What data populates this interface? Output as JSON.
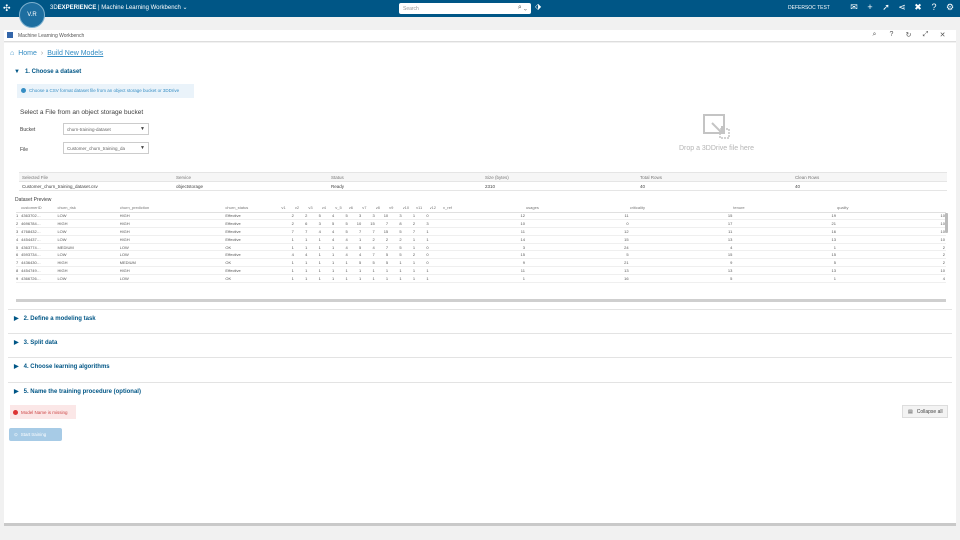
{
  "topbar": {
    "compass_label": "V.R",
    "brand_prefix": "3D",
    "brand_bold": "EXPERIENCE",
    "brand_sep": "|",
    "app_name": "Machine Learning Workbench",
    "search_placeholder": "Search",
    "user_name": "DEFERSOC TEST",
    "notification_count": "1"
  },
  "window": {
    "title": "Machine Learning Workbench"
  },
  "breadcrumb": {
    "home": "Home",
    "current": "Build New Models"
  },
  "sections": [
    {
      "label": "1. Choose a dataset",
      "expanded": true
    },
    {
      "label": "2. Define a modeling task",
      "expanded": false
    },
    {
      "label": "3. Split data",
      "expanded": false
    },
    {
      "label": "4. Choose learning algorithms",
      "expanded": false
    },
    {
      "label": "5. Name the training procedure (optional)",
      "expanded": false
    }
  ],
  "dataset": {
    "info_text": "Choose a CSV format dataset file from an object storage bucket or 3DDrive",
    "select_heading": "Select a File from an object storage bucket",
    "bucket_label": "Bucket",
    "bucket_value": "churn-training-dataset",
    "file_label": "File",
    "file_value": "Customer_churn_training_da",
    "drop_text": "Drop a 3DDrive file here"
  },
  "summary": {
    "headers": [
      "Selected File",
      "Service",
      "Status",
      "Size (bytes)",
      "Total Rows",
      "Clean Rows"
    ],
    "row": [
      "Customer_churn_training_dataset.csv",
      "objectstorage",
      "Ready",
      "2310",
      "40",
      "40"
    ]
  },
  "preview": {
    "label": "Dataset Preview",
    "headers": [
      "customerID",
      "churn_risk",
      "churn_prediction",
      "churn_status",
      "v1",
      "v2",
      "v3",
      "v4",
      "v_5",
      "v6",
      "v7",
      "v8",
      "v9",
      "v10",
      "v11",
      "v12",
      "v_ref",
      "usages",
      "criticality",
      "tenure",
      "quality"
    ],
    "rows": [
      [
        "1",
        "4363702…",
        "LOW",
        "HIGH",
        "Effective",
        "2",
        "2",
        "5",
        "4",
        "5",
        "3",
        "3",
        "10",
        "3",
        "1",
        "0",
        "",
        "12",
        "11",
        "15",
        "19",
        "10"
      ],
      [
        "2",
        "4696784…",
        "HIGH",
        "HIGH",
        "Effective",
        "2",
        "6",
        "3",
        "5",
        "5",
        "10",
        "15",
        "7",
        "8",
        "2",
        "3",
        "",
        "10",
        "0",
        "17",
        "21",
        "10"
      ],
      [
        "3",
        "4768432…",
        "LOW",
        "HIGH",
        "Effective",
        "7",
        "7",
        "4",
        "4",
        "5",
        "7",
        "7",
        "15",
        "5",
        "7",
        "1",
        "",
        "11",
        "12",
        "11",
        "16",
        "10"
      ],
      [
        "4",
        "4454437…",
        "LOW",
        "HIGH",
        "Effective",
        "1",
        "1",
        "1",
        "4",
        "4",
        "1",
        "2",
        "2",
        "2",
        "1",
        "1",
        "",
        "14",
        "15",
        "13",
        "13",
        "10"
      ],
      [
        "5",
        "4363774…",
        "MEDIUM",
        "LOW",
        "OK",
        "1",
        "1",
        "1",
        "1",
        "4",
        "5",
        "4",
        "7",
        "5",
        "1",
        "0",
        "",
        "3",
        "24",
        "4",
        "1",
        "2"
      ],
      [
        "6",
        "4593734…",
        "LOW",
        "LOW",
        "Effective",
        "4",
        "4",
        "1",
        "1",
        "4",
        "4",
        "7",
        "5",
        "5",
        "2",
        "0",
        "",
        "15",
        "5",
        "15",
        "15",
        "2"
      ],
      [
        "7",
        "4436430…",
        "HIGH",
        "MEDIUM",
        "OK",
        "1",
        "1",
        "1",
        "1",
        "1",
        "5",
        "5",
        "5",
        "1",
        "1",
        "0",
        "",
        "9",
        "21",
        "9",
        "5",
        "2"
      ],
      [
        "8",
        "4454749…",
        "HIGH",
        "HIGH",
        "Effective",
        "1",
        "1",
        "1",
        "1",
        "1",
        "1",
        "1",
        "1",
        "1",
        "1",
        "1",
        "",
        "11",
        "13",
        "13",
        "13",
        "10"
      ],
      [
        "9",
        "4366726…",
        "LOW",
        "LOW",
        "OK",
        "1",
        "1",
        "1",
        "1",
        "1",
        "1",
        "1",
        "1",
        "1",
        "1",
        "1",
        "",
        "1",
        "16",
        "5",
        "1",
        "4"
      ]
    ]
  },
  "footer": {
    "warning": "Model Name is missing",
    "collapse_all": "Collapse all",
    "start_training": "Start training"
  },
  "colors": {
    "topbar": "#005686",
    "link": "#368ec4",
    "section": "#005686",
    "warning": "#d33"
  }
}
